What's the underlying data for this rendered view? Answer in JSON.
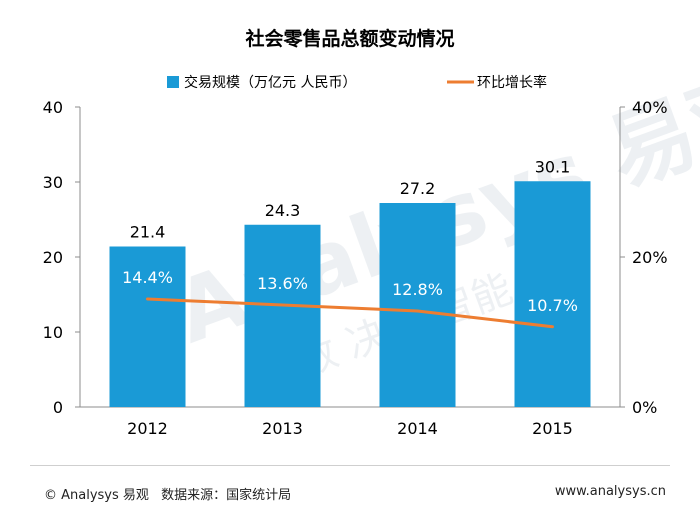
{
  "chart_data": {
    "type": "bar",
    "title": "社会零售品总额变动情况",
    "categories": [
      "2012",
      "2013",
      "2014",
      "2015"
    ],
    "series": [
      {
        "name": "交易规模（万亿元 人民币）",
        "type": "bar",
        "axis": "left",
        "values": [
          21.4,
          24.3,
          27.2,
          30.1
        ],
        "labels": [
          "21.4",
          "24.3",
          "27.2",
          "30.1"
        ],
        "color": "#1a9ad6"
      },
      {
        "name": "环比增长率",
        "type": "line",
        "axis": "right",
        "values": [
          14.4,
          13.6,
          12.8,
          10.7
        ],
        "labels": [
          "14.4%",
          "13.6%",
          "12.8%",
          "10.7%"
        ],
        "color": "#ed7d31"
      }
    ],
    "y_left": {
      "ylim": [
        0,
        40
      ],
      "ticks": [
        "0",
        "10",
        "20",
        "30",
        "40"
      ]
    },
    "y_right": {
      "ylim": [
        0,
        40
      ],
      "ticks": [
        "0%",
        "20%",
        "40%"
      ]
    },
    "legend": "top",
    "grid": false
  },
  "watermark": {
    "brand": "Analysys 易观",
    "slogan": "指数 决策 智能"
  },
  "footer": {
    "copyright": "© Analysys 易观",
    "source": "数据来源：国家统计局",
    "website": "www.analysys.cn"
  }
}
